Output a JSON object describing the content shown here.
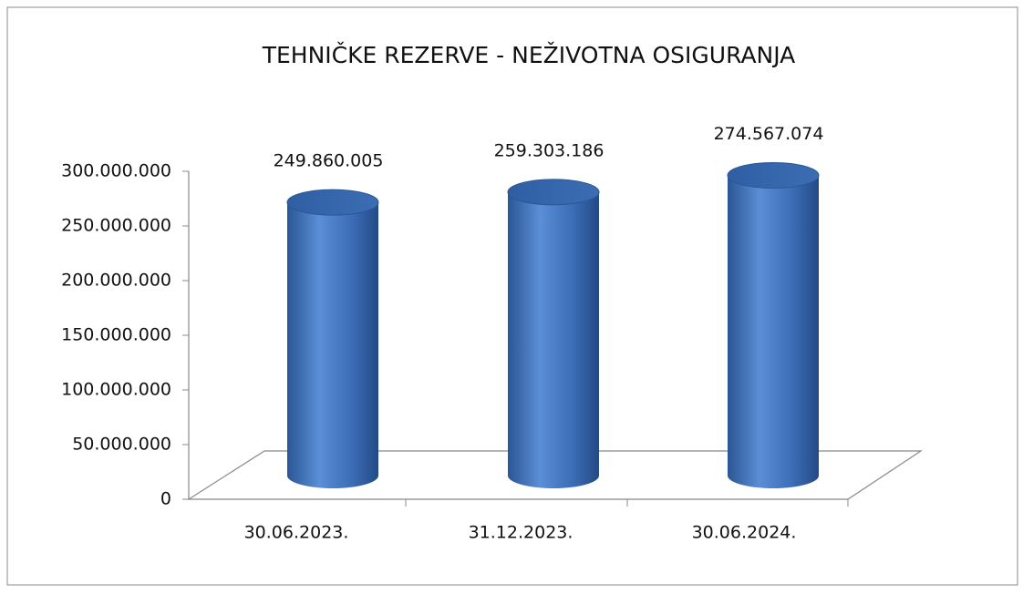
{
  "chart_data": {
    "type": "bar",
    "title": "TEHNIČKE REZERVE - NEŽIVOTNA OSIGURANJA",
    "categories": [
      "30.06.2023.",
      "31.12.2023.",
      "30.06.2024."
    ],
    "values": [
      249860005,
      259303186,
      274567074
    ],
    "value_labels": [
      "249.860.005",
      "259.303.186",
      "274.567.074"
    ],
    "color": "#3a6cb5",
    "ylim": [
      0,
      300000000
    ],
    "yticks": [
      0,
      {
        "value": 50000000,
        "label": "50.000.000"
      },
      {
        "value": 100000000,
        "label": "100.000.000"
      },
      {
        "value": 150000000,
        "label": "150.000.000"
      },
      {
        "value": 200000000,
        "label": "200.000.000"
      },
      {
        "value": 250000000,
        "label": "250.000.000"
      },
      {
        "value": 300000000,
        "label": "300.000.000"
      }
    ],
    "grid": false
  }
}
